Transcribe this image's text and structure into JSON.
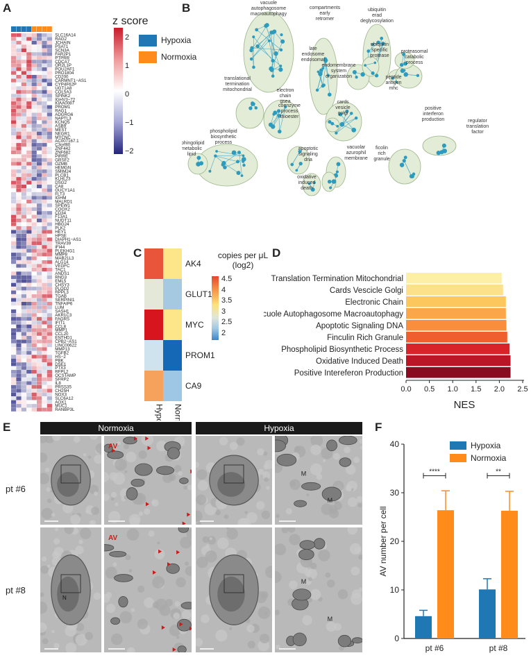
{
  "panels": {
    "a": "A",
    "b": "B",
    "c": "C",
    "d": "D",
    "e": "E",
    "f": "F"
  },
  "panel_a": {
    "legend_title": "z score",
    "colorbar_ticks": [
      "2",
      "1",
      "0",
      "−1",
      "−2"
    ],
    "group_legend": [
      {
        "label": "Hypoxia",
        "color": "#1f77b4"
      },
      {
        "label": "Normoxia",
        "color": "#ff8c1a"
      }
    ],
    "genes": [
      "SLC16A14",
      "RAG2",
      "JCHAIN",
      "PSAT1",
      "SCN3A",
      "FAR2P1",
      "PTPRR",
      "CDCA7",
      "OR2L1P",
      "POU2AF1",
      "PRO1804",
      "CD200",
      "CARMNT1−AS1",
      "CYP4F62P",
      "UGT1A8",
      "COL5A3",
      "SPINK2",
      "IGHV3−72",
      "KIAA0087",
      "PROM1",
      "RAG1",
      "ADGRG6",
      "NAPTL3",
      "KCNQ5",
      "ASB9",
      "MEST",
      "NEGR1",
      "MYCNC",
      "AC007167.1",
      "C3orf80",
      "ZNF442",
      "ZNF682",
      "PIRRE",
      "GRSF2",
      "OZMB",
      "HEMGN",
      "SMIM24",
      "PLCB1",
      "KLHL23",
      "DSG2",
      "CA8",
      "GUCY1A1",
      "FLT3",
      "IGHM",
      "MALRD1",
      "SPEW1",
      "COOX2",
      "CD34",
      "F13A1",
      "NUDT11",
      "HBG24",
      "PLK2",
      "HEY1",
      "HPSE",
      "DIAPH1−AS1",
      "TRAV39",
      "IFI44",
      "PLEKHG1",
      "MMP8",
      "MAB21L3",
      "ALG14",
      "VEGFC",
      "TAC1",
      "ANDS1",
      "RND3",
      "EML5",
      "CHSY3",
      "PLOD2",
      "RPPL3",
      "TGAB",
      "SERPINI1",
      "TNFAIP6",
      "LUM",
      "SASH1",
      "AKR1C3",
      "FAGRS",
      "IFIT1",
      "CCL8",
      "MMP1",
      "CCL20",
      "ENTHD1",
      "CPB2−AS1",
      "LINC00622",
      "MMP13",
      "TGFB2",
      "HS−2",
      "PBK",
      "DSE1",
      "PTX3",
      "RFPL2",
      "OCSTAMP",
      "SFRP2",
      "IL8",
      "PRSS35",
      "CH25H",
      "NOX3",
      "SLC6A12",
      "AOX1",
      "MUC1",
      "RANBP3L"
    ]
  },
  "panel_b": {
    "clusters": [
      "vacuole autophagosome macroautophagy",
      "compartments early retromer",
      "ubiquitin erad deglycosylation",
      "late endosome endosomal",
      "endomembrane system organization",
      "ubiquitin specific protease",
      "proteasomal catabolic process",
      "peptide antigen mhc",
      "translational termination mitochondrial",
      "electron chain gsea",
      "cards vesicle golgi",
      "coenzyme process thioester",
      "phospholipid biosynthetic process",
      "sphingolipid metabolic lipid",
      "apoptotic signaling dna",
      "vacuolar azurophil membrane",
      "ficolin rich granule",
      "oxidative induced death",
      "positive interferon production",
      "regulator translation factor"
    ]
  },
  "panel_c": {
    "genes": [
      "AK4",
      "GLUT1",
      "MYC",
      "PROM1",
      "CA9"
    ],
    "conditions": [
      "Hypoxia",
      "Normoxia"
    ],
    "legend_title_1": "copies per μL",
    "legend_title_2": "(log2)",
    "legend_ticks": [
      "4.5",
      "4",
      "3.5",
      "3",
      "2.5",
      "2"
    ]
  },
  "panel_e": {
    "normoxia_title": "Normoxia",
    "hypoxia_title": "Hypoxia",
    "row1": "pt #6",
    "row2": "pt #8",
    "labels": {
      "av": "AV",
      "m": "M",
      "n": "N"
    }
  },
  "panel_f": {
    "legend": [
      {
        "label": "Hypoxia",
        "color": "#1f77b4"
      },
      {
        "label": "Normoxia",
        "color": "#ff8c1a"
      }
    ],
    "sig1": "****",
    "sig2": "**"
  },
  "chart_data": [
    {
      "type": "bar",
      "panel": "D",
      "orientation": "horizontal",
      "categories": [
        "Translation Termination Mitochondrial",
        "Cards Vescicle Golgi",
        "Electronic Chain",
        "Vacuole Autophagosome Macroautophagy",
        "Apoptotic Signaling DNA",
        "Finculin Rich Granule",
        "Phospholipid Biosynthetic Process",
        "Oxidative Induced Death",
        "Positive Intereferon Production"
      ],
      "values": [
        2.05,
        2.08,
        2.14,
        2.14,
        2.15,
        2.17,
        2.22,
        2.24,
        2.24
      ],
      "colors": [
        "#fdf0a6",
        "#fde08a",
        "#fcc75c",
        "#fca64a",
        "#f98e3c",
        "#ef5e2f",
        "#d8232a",
        "#bb1527",
        "#8a0a1f"
      ],
      "xlabel": "NES",
      "xlim": [
        0,
        2.5
      ],
      "xticks": [
        "0.0",
        "0.5",
        "1.0",
        "1.5",
        "2.0",
        "2.5"
      ]
    },
    {
      "type": "bar",
      "panel": "F",
      "categories": [
        "pt #6",
        "pt #8"
      ],
      "series": [
        {
          "name": "Hypoxia",
          "values": [
            4.6,
            10.1
          ],
          "errors": [
            1.2,
            2.2
          ]
        },
        {
          "name": "Normoxia",
          "values": [
            26.4,
            26.3
          ],
          "errors": [
            4.0,
            4.0
          ]
        }
      ],
      "ylabel": "AV number per cell",
      "ylim": [
        0,
        40
      ],
      "yticks": [
        "0",
        "10",
        "20",
        "30",
        "40"
      ]
    }
  ]
}
